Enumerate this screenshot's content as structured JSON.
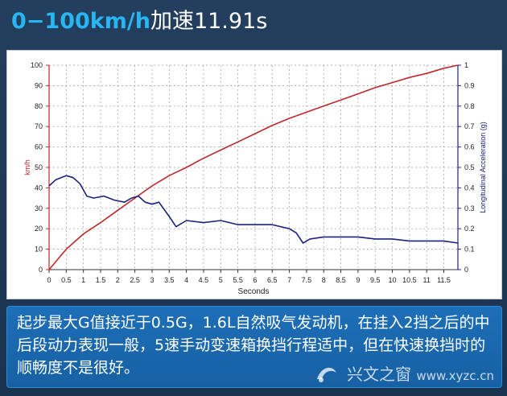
{
  "title": {
    "highlight": "0−100km/h",
    "rest": "加速11.91s"
  },
  "caption": "起步最大G值接近于0.5G，1.6L自然吸气发动机，在挂入2挡之后的中后段动力表现一般，5速手动变速箱换挡行程适中，但在快速换挡时的顺畅度不是很好。",
  "watermark": {
    "site": "兴文之窗",
    "url": "www.xyzc.cn"
  },
  "colors": {
    "speed": "#c0282a",
    "accel": "#1a237e",
    "title_highlight": "#27b6f2",
    "caption_bg": "#1d6fb8"
  },
  "chart_data": {
    "type": "line",
    "title": "",
    "xlabel": "Seconds",
    "ylabel": "km/h",
    "y2label": "Longitudinal Acceleration (g)",
    "xlim": [
      0,
      11.91
    ],
    "ylim": [
      0,
      100
    ],
    "y2lim": [
      0,
      1
    ],
    "grid": true,
    "x_ticks": [
      "0",
      "0.5",
      "1",
      "1.5",
      "2",
      "2.5",
      "3",
      "3.5",
      "4",
      "4.5",
      "5",
      "5.5",
      "6",
      "6.5",
      "7",
      "7.5",
      "8",
      "8.5",
      "9",
      "9.5",
      "10",
      "10.5",
      "11",
      "11.5"
    ],
    "y_ticks": [
      "0",
      "10",
      "20",
      "30",
      "40",
      "50",
      "60",
      "70",
      "80",
      "90",
      "100"
    ],
    "y2_ticks": [
      "0",
      "0.1",
      "0.2",
      "0.3",
      "0.4",
      "0.5",
      "0.6",
      "0.7",
      "0.8",
      "0.9",
      "1"
    ],
    "series": [
      {
        "axis": "left",
        "x": [
          0,
          0.5,
          1,
          1.5,
          2,
          2.5,
          3,
          3.5,
          4,
          4.5,
          5,
          5.5,
          6,
          6.5,
          7,
          7.5,
          8,
          8.5,
          9,
          9.5,
          10,
          10.5,
          11,
          11.5,
          11.91
        ],
        "y": [
          0,
          10,
          17.5,
          23,
          29,
          35,
          41,
          46,
          50,
          54.5,
          58.5,
          62.5,
          66.5,
          70.5,
          74,
          77,
          80,
          83,
          86,
          89,
          91.5,
          94,
          96,
          98.5,
          100
        ]
      },
      {
        "axis": "right",
        "x": [
          0,
          0.2,
          0.5,
          0.7,
          0.9,
          1.1,
          1.3,
          1.6,
          1.9,
          2.2,
          2.4,
          2.6,
          2.8,
          3,
          3.2,
          3.5,
          3.7,
          4,
          4.5,
          5,
          5.5,
          6,
          6.5,
          7,
          7.2,
          7.4,
          7.6,
          8,
          8.5,
          9,
          9.5,
          10,
          10.5,
          11,
          11.5,
          11.91
        ],
        "y": [
          0.41,
          0.44,
          0.46,
          0.45,
          0.42,
          0.36,
          0.35,
          0.36,
          0.34,
          0.33,
          0.35,
          0.36,
          0.33,
          0.32,
          0.33,
          0.26,
          0.21,
          0.24,
          0.23,
          0.24,
          0.22,
          0.22,
          0.22,
          0.2,
          0.18,
          0.13,
          0.15,
          0.16,
          0.16,
          0.16,
          0.15,
          0.15,
          0.14,
          0.14,
          0.14,
          0.13
        ]
      }
    ]
  }
}
